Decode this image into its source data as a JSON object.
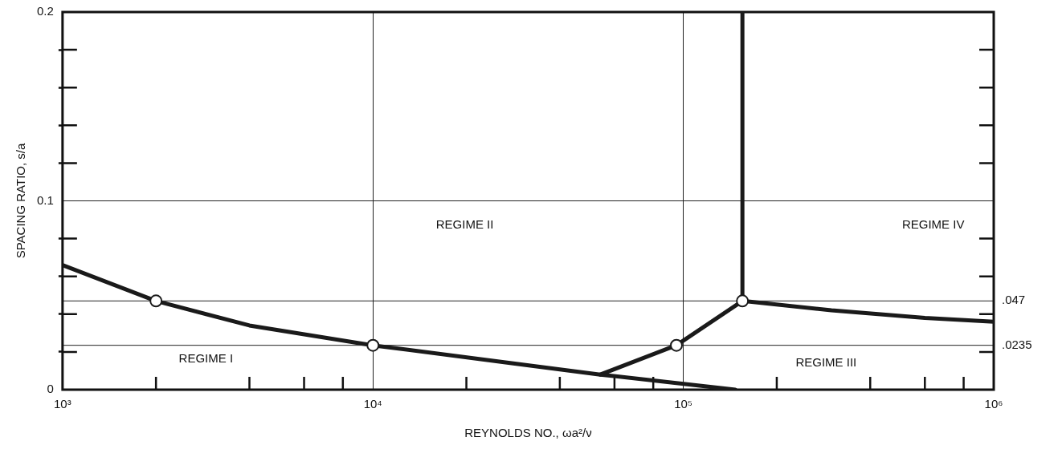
{
  "chart_data": {
    "type": "line",
    "xlabel": "REYNOLDS NO., ωa²/ν",
    "ylabel": "SPACING RATIO, s/a",
    "log": "x",
    "grid": true,
    "legend": false,
    "marker": "none",
    "line_style": "solid",
    "xlim": [
      1000,
      1000000
    ],
    "xticks": [
      {
        "value": 1000,
        "label": "10³"
      },
      {
        "value": 2000,
        "label": null
      },
      {
        "value": 4000,
        "label": null
      },
      {
        "value": 6000,
        "label": null
      },
      {
        "value": 8000,
        "label": null
      },
      {
        "value": 10000,
        "label": "10⁴"
      },
      {
        "value": 20000,
        "label": null
      },
      {
        "value": 40000,
        "label": null
      },
      {
        "value": 60000,
        "label": null
      },
      {
        "value": 80000,
        "label": null
      },
      {
        "value": 100000,
        "label": "10⁵"
      },
      {
        "value": 200000,
        "label": null
      },
      {
        "value": 400000,
        "label": null
      },
      {
        "value": 600000,
        "label": null
      },
      {
        "value": 800000,
        "label": null
      },
      {
        "value": 1000000,
        "label": "10⁶"
      }
    ],
    "ylim": [
      0,
      0.2
    ],
    "yticks": [
      0,
      {
        "value": 0.02,
        "label": null
      },
      {
        "value": 0.04,
        "label": null
      },
      {
        "value": 0.06,
        "label": null
      },
      {
        "value": 0.08,
        "label": null
      },
      0.1,
      {
        "value": 0.12,
        "label": null
      },
      {
        "value": 0.14,
        "label": null
      },
      {
        "value": 0.16,
        "label": null
      },
      {
        "value": 0.18,
        "label": null
      },
      0.2
    ],
    "series": [
      {
        "color": "#1a1a1a",
        "x": [
          1000,
          2000,
          4000,
          10000,
          28000,
          54000,
          147000
        ],
        "values": [
          0.066,
          0.047,
          0.034,
          0.0235,
          0.014,
          0.008,
          0
        ]
      },
      {
        "color": "#1a1a1a",
        "x": [
          54000,
          95000,
          155000,
          155000
        ],
        "values": [
          0.008,
          0.0235,
          0.047,
          0.2
        ]
      },
      {
        "color": "#1a1a1a",
        "x": [
          155000,
          300000,
          600000,
          1000000
        ],
        "values": [
          0.047,
          0.042,
          0.038,
          0.036
        ]
      },
      {
        "type": "scatter",
        "color": "#1a1a1a",
        "marker": "circle",
        "x": [
          2000,
          10000,
          95000,
          155000
        ],
        "values": [
          0.047,
          0.0235,
          0.0235,
          0.047
        ]
      }
    ],
    "ref_lines": [
      {
        "axis": "y",
        "value": 0.047,
        "label": ".047"
      },
      {
        "axis": "y",
        "value": 0.0235,
        "label": ".0235"
      }
    ],
    "annotations": [
      "REGIME I",
      "REGIME II",
      "REGIME III",
      "REGIME IV"
    ]
  }
}
